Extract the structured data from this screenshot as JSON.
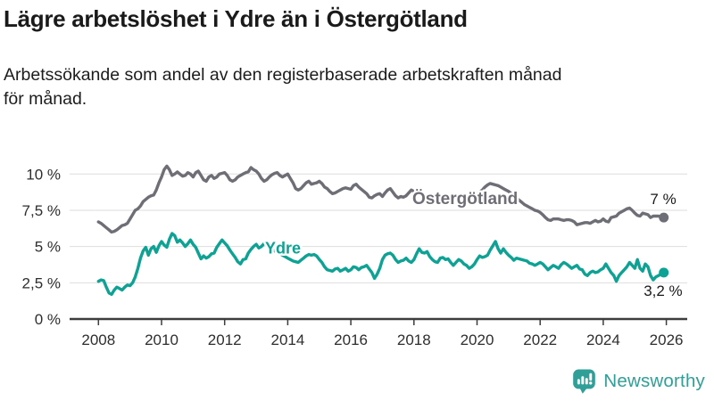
{
  "title": "Lägre arbetslöshet i Ydre än i Östergötland",
  "subtitle_lines": [
    "Arbetssökande som andel av den registerbaserade arbetskraften månad",
    "för månad."
  ],
  "branding": {
    "logo_text": "Newsworthy",
    "logo_icon": "bar-chart-speech-bubble-icon",
    "logo_color": "#2f9f97"
  },
  "colors": {
    "ostergotland_line": "#6e6e76",
    "ydre_line": "#0da294",
    "gridline": "#dedede",
    "axis": "#3d3d3d",
    "tick_label": "#2e2e2e",
    "end_label": "#1a1a1a"
  },
  "chart_data": {
    "type": "line",
    "unit": "%",
    "frequency": "monthly",
    "x_start": "2008-01",
    "x_end": "2025-12",
    "xlim": [
      2007.1,
      2026.7
    ],
    "ylim": [
      0,
      10.7
    ],
    "grid": true,
    "legend_position": "direct-labels-on-lines",
    "x_ticks": [
      {
        "year": 2008,
        "label": "2008"
      },
      {
        "year": 2010,
        "label": "2010"
      },
      {
        "year": 2012,
        "label": "2012"
      },
      {
        "year": 2014,
        "label": "2014"
      },
      {
        "year": 2016,
        "label": "2016"
      },
      {
        "year": 2018,
        "label": "2018"
      },
      {
        "year": 2020,
        "label": "2020"
      },
      {
        "year": 2022,
        "label": "2022"
      },
      {
        "year": 2024,
        "label": "2024"
      },
      {
        "year": 2026,
        "label": "2026"
      }
    ],
    "y_ticks": [
      {
        "value": 10,
        "label": "10 %"
      },
      {
        "value": 7.5,
        "label": "7,5 %"
      },
      {
        "value": 5,
        "label": "5 %"
      },
      {
        "value": 2.5,
        "label": "2,5 %"
      },
      {
        "value": 0,
        "label": "0 %"
      }
    ],
    "series": [
      {
        "name": "Östergötland",
        "color": "#6e6e76",
        "end_label": "7 %",
        "values": [
          6.7,
          6.6,
          6.45,
          6.3,
          6.15,
          6.0,
          6.05,
          6.15,
          6.3,
          6.45,
          6.5,
          6.6,
          6.9,
          7.2,
          7.5,
          7.6,
          7.8,
          8.1,
          8.25,
          8.4,
          8.5,
          8.55,
          8.9,
          9.4,
          9.8,
          10.3,
          10.55,
          10.3,
          9.9,
          10.0,
          10.15,
          10.0,
          9.85,
          9.9,
          10.1,
          10.0,
          9.8,
          10.1,
          10.2,
          9.9,
          9.6,
          9.5,
          9.8,
          9.9,
          9.7,
          9.8,
          10.0,
          10.05,
          10.1,
          9.9,
          9.6,
          9.5,
          9.6,
          9.8,
          9.9,
          10.0,
          10.1,
          10.15,
          10.45,
          10.3,
          10.2,
          10.0,
          9.7,
          9.5,
          9.6,
          9.8,
          9.95,
          10.05,
          10.1,
          9.9,
          9.8,
          9.9,
          10.0,
          9.7,
          9.4,
          9.0,
          8.9,
          9.0,
          9.2,
          9.4,
          9.5,
          9.3,
          9.35,
          9.4,
          9.5,
          9.35,
          9.1,
          9.0,
          8.8,
          8.65,
          8.7,
          8.8,
          8.9,
          9.0,
          9.05,
          9.0,
          8.95,
          9.2,
          9.3,
          9.1,
          8.95,
          8.8,
          8.65,
          8.4,
          8.35,
          8.5,
          8.6,
          8.65,
          8.45,
          8.7,
          8.9,
          9.0,
          8.75,
          8.5,
          8.35,
          8.45,
          8.4,
          8.5,
          8.7,
          8.9,
          8.8,
          8.7,
          8.6,
          8.55,
          8.5,
          8.45,
          8.45,
          8.5,
          8.5,
          8.45,
          8.4,
          8.4,
          8.4,
          8.35,
          8.3,
          8.35,
          8.4,
          8.45,
          8.4,
          8.4,
          8.45,
          8.5,
          8.55,
          8.6,
          8.6,
          8.75,
          8.9,
          9.1,
          9.25,
          9.35,
          9.3,
          9.25,
          9.2,
          9.1,
          9.0,
          8.9,
          8.8,
          8.65,
          8.5,
          8.35,
          8.2,
          8.05,
          7.9,
          7.8,
          7.7,
          7.6,
          7.5,
          7.45,
          7.35,
          7.2,
          7.0,
          6.85,
          6.8,
          6.9,
          6.9,
          6.9,
          6.85,
          6.8,
          6.85,
          6.85,
          6.8,
          6.7,
          6.5,
          6.55,
          6.6,
          6.65,
          6.65,
          6.6,
          6.7,
          6.8,
          6.7,
          6.75,
          6.9,
          6.75,
          6.7,
          7.0,
          7.05,
          7.1,
          7.3,
          7.4,
          7.5,
          7.6,
          7.65,
          7.5,
          7.3,
          7.15,
          7.1,
          7.3,
          7.25,
          7.2,
          7.0,
          7.1,
          7.1,
          7.1,
          7.05,
          7.0
        ]
      },
      {
        "name": "Ydre",
        "color": "#0da294",
        "end_label": "3,2 %",
        "values": [
          2.6,
          2.7,
          2.65,
          2.2,
          1.8,
          1.7,
          2.0,
          2.2,
          2.1,
          2.0,
          2.2,
          2.35,
          2.3,
          2.5,
          2.9,
          3.5,
          4.2,
          4.7,
          4.95,
          4.4,
          4.85,
          5.0,
          4.6,
          5.05,
          5.35,
          5.1,
          4.95,
          5.5,
          5.9,
          5.75,
          5.3,
          5.45,
          5.25,
          5.0,
          5.2,
          5.45,
          5.15,
          4.95,
          4.55,
          4.15,
          4.35,
          4.2,
          4.3,
          4.5,
          4.55,
          4.95,
          5.2,
          5.45,
          5.25,
          5.05,
          4.75,
          4.5,
          4.25,
          3.95,
          3.8,
          4.1,
          4.15,
          4.55,
          4.8,
          5.0,
          5.15,
          4.9,
          5.0,
          5.2,
          5.3,
          5.1,
          4.9,
          4.7,
          4.6,
          4.5,
          4.4,
          4.3,
          4.2,
          4.1,
          4.0,
          3.95,
          3.9,
          4.05,
          4.2,
          4.35,
          4.45,
          4.4,
          4.45,
          4.35,
          4.1,
          3.9,
          3.6,
          3.4,
          3.35,
          3.3,
          3.45,
          3.5,
          3.3,
          3.4,
          3.5,
          3.3,
          3.4,
          3.6,
          3.55,
          3.4,
          3.55,
          3.6,
          3.7,
          3.45,
          3.2,
          2.8,
          3.1,
          3.5,
          4.1,
          4.4,
          4.5,
          4.55,
          4.4,
          4.1,
          3.9,
          4.0,
          4.05,
          4.2,
          4.0,
          3.9,
          4.1,
          4.5,
          4.85,
          4.6,
          4.55,
          4.65,
          4.3,
          4.1,
          3.95,
          3.9,
          4.2,
          4.25,
          4.1,
          4.15,
          3.9,
          3.7,
          3.9,
          4.1,
          4.0,
          3.8,
          3.7,
          3.5,
          3.6,
          3.8,
          4.1,
          4.35,
          4.25,
          4.3,
          4.4,
          4.75,
          5.05,
          5.35,
          4.85,
          4.55,
          4.85,
          4.6,
          4.4,
          4.25,
          4.05,
          4.2,
          4.15,
          4.1,
          4.05,
          4.0,
          3.85,
          3.8,
          3.7,
          3.8,
          3.9,
          3.8,
          3.6,
          3.4,
          3.55,
          3.7,
          3.6,
          3.5,
          3.75,
          3.9,
          3.8,
          3.65,
          3.5,
          3.6,
          3.7,
          3.45,
          3.4,
          3.1,
          3.0,
          3.2,
          3.3,
          3.2,
          3.25,
          3.4,
          3.5,
          3.8,
          3.5,
          3.2,
          3.0,
          2.6,
          3.0,
          3.2,
          3.4,
          3.6,
          3.9,
          3.7,
          3.5,
          4.1,
          3.5,
          3.3,
          3.8,
          3.6,
          3.0,
          2.7,
          2.9,
          3.0,
          3.1,
          3.2
        ]
      }
    ]
  }
}
